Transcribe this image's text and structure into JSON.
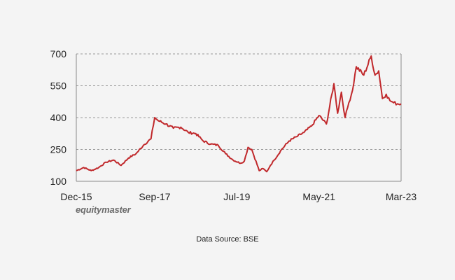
{
  "chart_data": {
    "type": "line",
    "title": "",
    "xlabel": "",
    "ylabel": "",
    "ylim": [
      100,
      700
    ],
    "yticks": [
      100,
      250,
      400,
      550,
      700
    ],
    "xticks": [
      "Dec-15",
      "Sep-17",
      "Jul-19",
      "May-21",
      "Mar-23"
    ],
    "grid": true,
    "line_color": "#c0282b",
    "series": [
      {
        "x": [
          "Dec-15",
          "Feb-16",
          "Apr-16",
          "Jun-16",
          "Aug-16",
          "Oct-16",
          "Dec-16",
          "Feb-17",
          "Apr-17",
          "Jun-17",
          "Aug-17",
          "Sep-17",
          "Oct-17",
          "Dec-17",
          "Feb-18",
          "Apr-18",
          "Jun-18",
          "Aug-18",
          "Oct-18",
          "Dec-18",
          "Feb-19",
          "Apr-19",
          "Jun-19",
          "Aug-19",
          "Sep-19",
          "Oct-19",
          "Nov-19",
          "Jan-20",
          "Feb-20",
          "Mar-20",
          "Apr-20",
          "May-20",
          "Jul-20",
          "Sep-20",
          "Nov-20",
          "Jan-21",
          "Mar-21",
          "May-21",
          "Jul-21",
          "Sep-21",
          "Oct-21",
          "Nov-21",
          "Dec-21",
          "Jan-22",
          "Feb-22",
          "Mar-22",
          "May-22",
          "Jul-22",
          "Aug-22",
          "Sep-22",
          "Oct-22",
          "Nov-22",
          "Dec-22",
          "Jan-23",
          "Feb-23",
          "Mar-23"
        ],
        "values": [
          150,
          165,
          150,
          165,
          190,
          200,
          175,
          210,
          230,
          270,
          300,
          400,
          385,
          370,
          350,
          355,
          330,
          325,
          290,
          275,
          270,
          230,
          200,
          185,
          195,
          260,
          250,
          150,
          160,
          145,
          175,
          200,
          250,
          290,
          310,
          330,
          360,
          410,
          370,
          560,
          420,
          520,
          400,
          470,
          530,
          640,
          600,
          690,
          600,
          620,
          490,
          510,
          480,
          470,
          465,
          465
        ]
      }
    ]
  },
  "branding": {
    "logo_text": "equitymaster"
  },
  "footer": {
    "source": "Data Source: BSE"
  }
}
